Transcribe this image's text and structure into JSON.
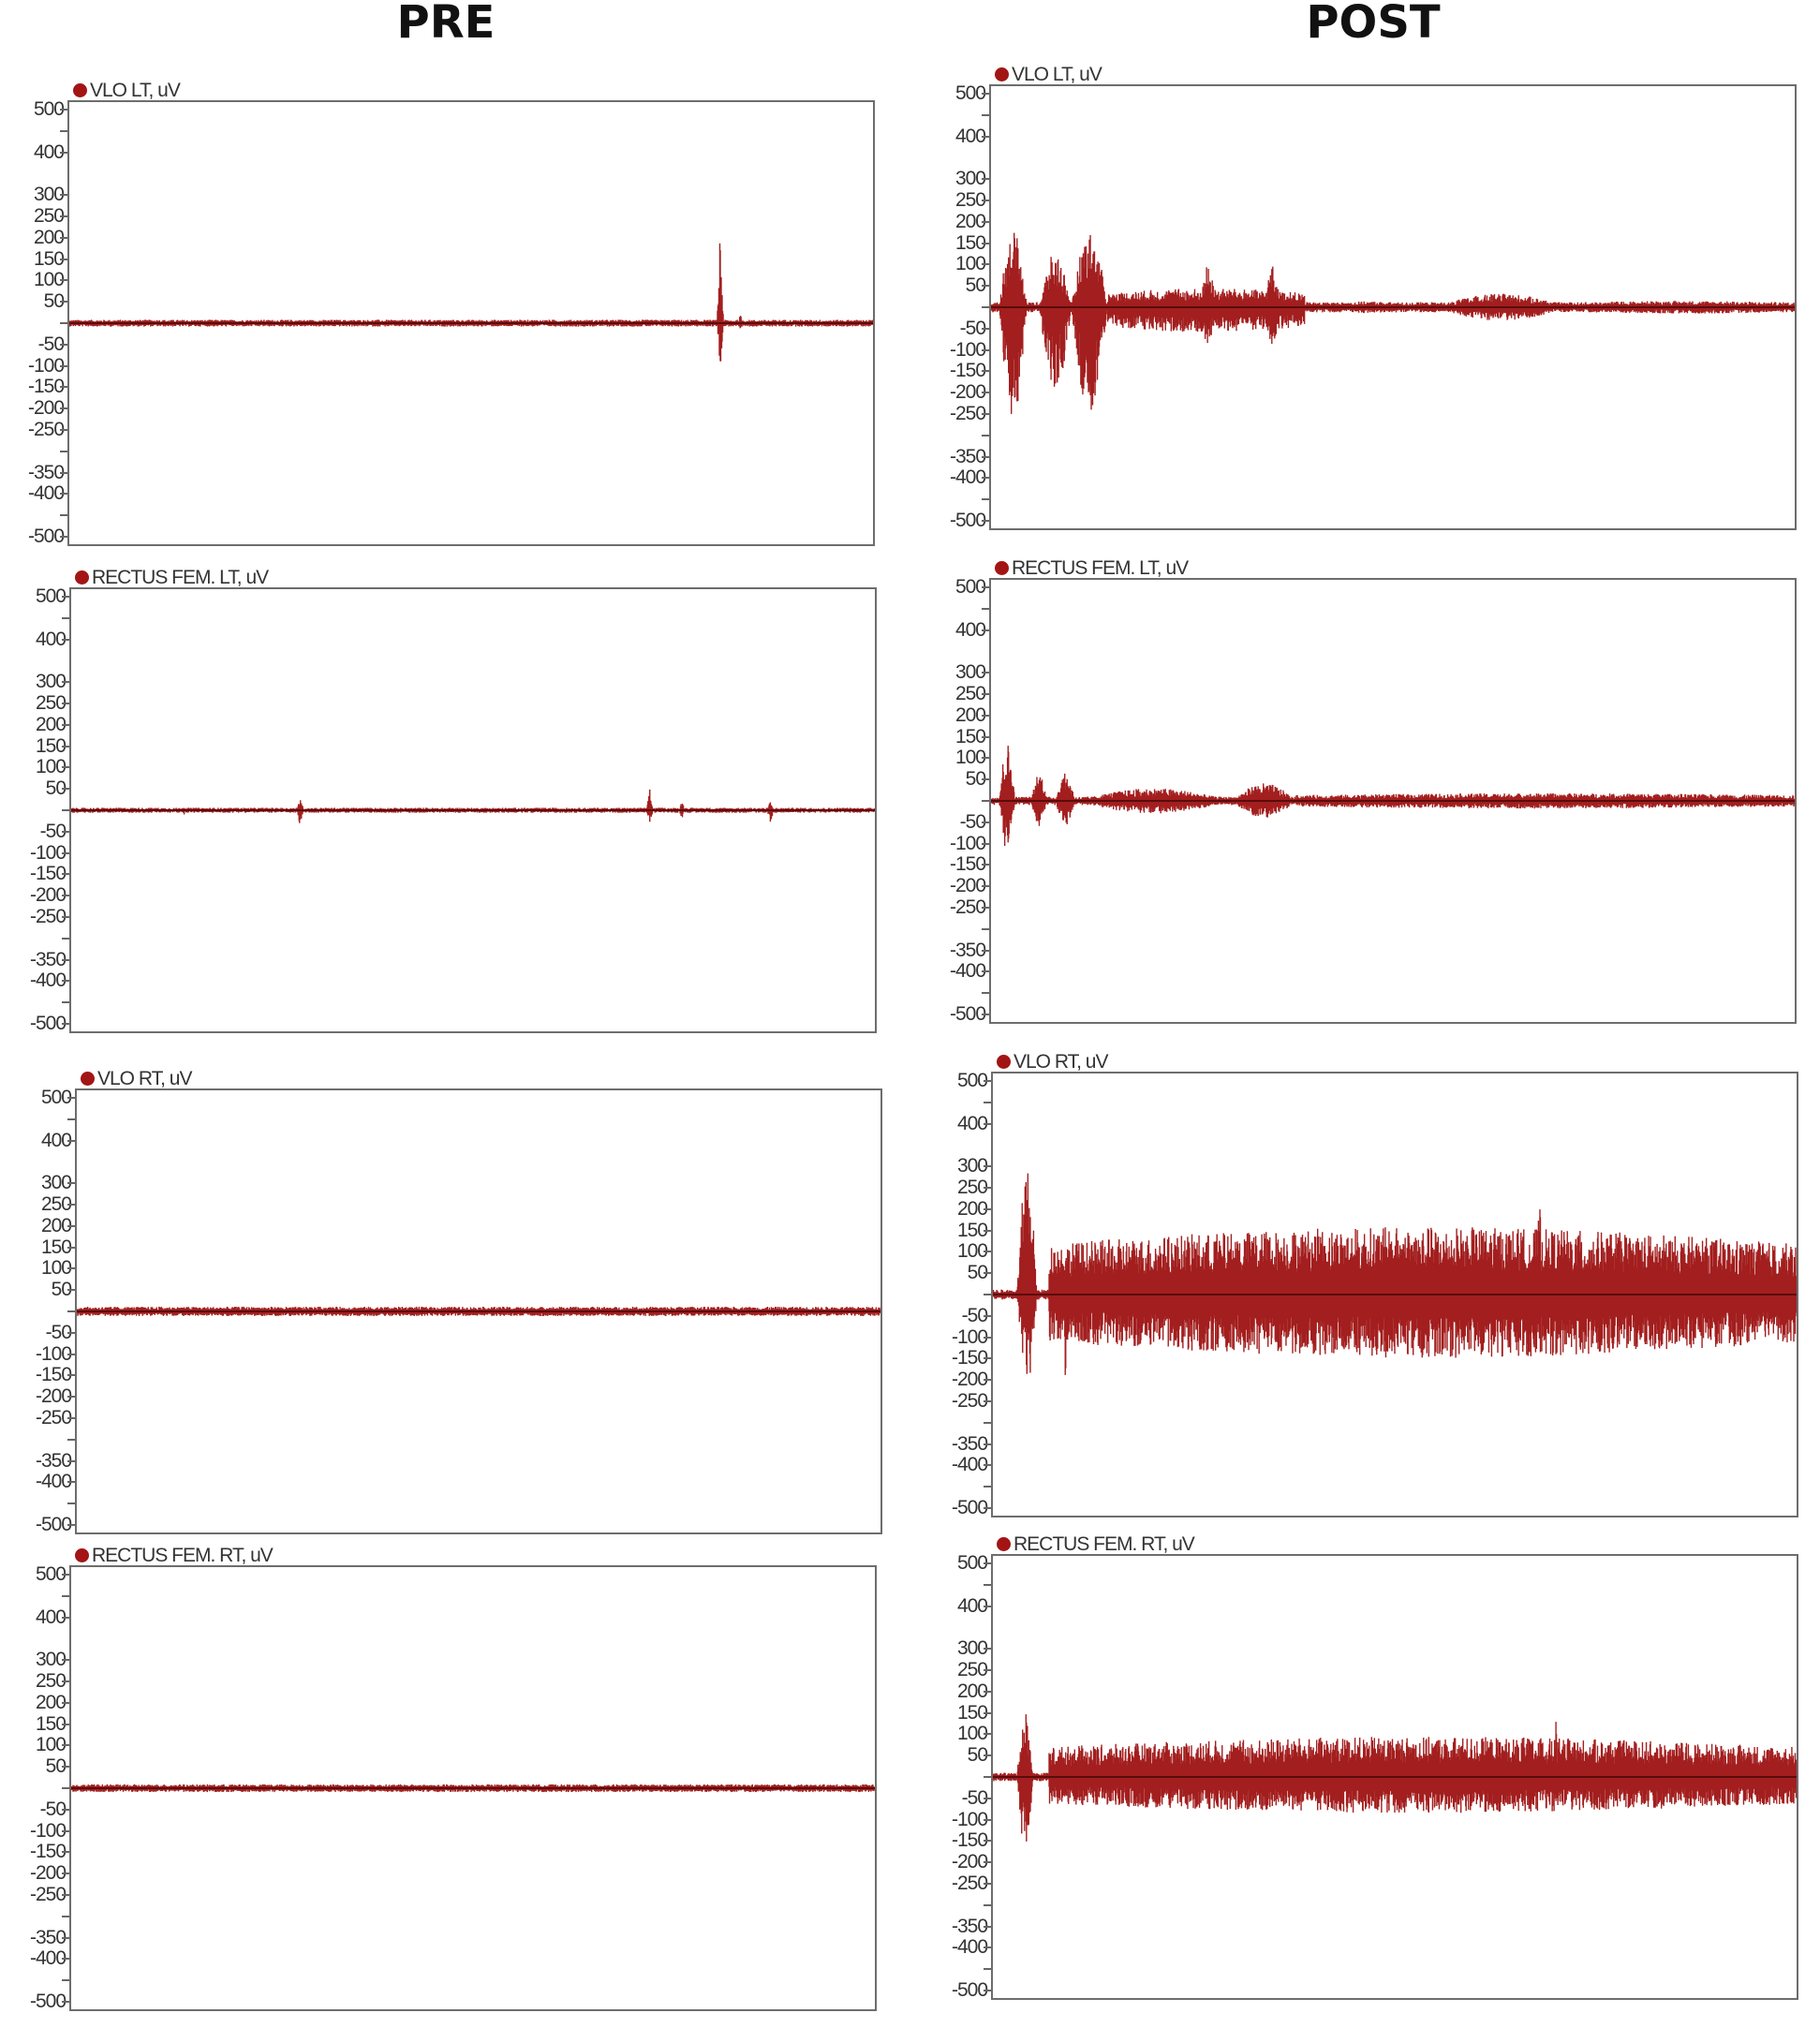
{
  "titles": {
    "pre": "PRE",
    "post": "POST"
  },
  "colors": {
    "signal": "#a31e1e",
    "baseline": "#5a0c0c",
    "marker": "#a31515"
  },
  "chart_data": [
    {
      "type": "line",
      "group": "PRE",
      "title": "VLO LT, uV",
      "ylabel": "uV",
      "ylim": [
        -500,
        500
      ],
      "x_units": "normalized time 0-1",
      "noise": 8,
      "bursts": [],
      "spikes": [
        {
          "t": 0.81,
          "up": 260,
          "down": -110
        },
        {
          "t": 0.835,
          "up": 20,
          "down": -25
        }
      ]
    },
    {
      "type": "line",
      "group": "PRE",
      "title": "RECTUS FEM. LT, uV",
      "ylabel": "uV",
      "ylim": [
        -500,
        500
      ],
      "x_units": "normalized time 0-1",
      "noise": 6,
      "bursts": [],
      "spikes": [
        {
          "t": 0.285,
          "up": 40,
          "down": -45
        },
        {
          "t": 0.72,
          "up": 55,
          "down": -35
        },
        {
          "t": 0.76,
          "up": 25,
          "down": -20
        },
        {
          "t": 0.87,
          "up": 25,
          "down": -35
        },
        {
          "t": 0.14,
          "up": 12,
          "down": -12
        }
      ]
    },
    {
      "type": "line",
      "group": "PRE",
      "title": "VLO RT, uV",
      "ylabel": "uV",
      "ylim": [
        -500,
        500
      ],
      "x_units": "normalized time 0-1",
      "noise": 11,
      "bursts": [],
      "spikes": []
    },
    {
      "type": "line",
      "group": "PRE",
      "title": "RECTUS FEM. RT, uV",
      "ylabel": "uV",
      "ylim": [
        -500,
        500
      ],
      "x_units": "normalized time 0-1",
      "noise": 9,
      "bursts": [],
      "spikes": []
    },
    {
      "type": "line",
      "group": "POST",
      "title": "VLO LT, uV",
      "ylabel": "uV",
      "ylim": [
        -500,
        500
      ],
      "x_units": "normalized time 0-1",
      "noise": 12,
      "bursts": [
        {
          "t0": 0.01,
          "t1": 0.045,
          "up": 180,
          "down": -260
        },
        {
          "t0": 0.06,
          "t1": 0.1,
          "up": 130,
          "down": -200
        },
        {
          "t0": 0.1,
          "t1": 0.145,
          "up": 180,
          "down": -250
        },
        {
          "t0": 0.145,
          "t1": 0.39,
          "up": 45,
          "down": -60
        },
        {
          "t0": 0.26,
          "t1": 0.28,
          "up": 100,
          "down": -100
        },
        {
          "t0": 0.34,
          "t1": 0.36,
          "up": 100,
          "down": -90
        },
        {
          "t0": 0.39,
          "t1": 0.55,
          "up": 14,
          "down": -14
        },
        {
          "t0": 0.55,
          "t1": 0.72,
          "up": 32,
          "down": -32
        },
        {
          "t0": 0.72,
          "t1": 1.0,
          "up": 15,
          "down": -15
        }
      ],
      "spikes": []
    },
    {
      "type": "line",
      "group": "POST",
      "title": "RECTUS FEM. LT, uV",
      "ylabel": "uV",
      "ylim": [
        -500,
        500
      ],
      "x_units": "normalized time 0-1",
      "noise": 10,
      "bursts": [
        {
          "t0": 0.01,
          "t1": 0.03,
          "up": 140,
          "down": -120
        },
        {
          "t0": 0.05,
          "t1": 0.07,
          "up": 70,
          "down": -60
        },
        {
          "t0": 0.08,
          "t1": 0.105,
          "up": 65,
          "down": -60
        },
        {
          "t0": 0.105,
          "t1": 0.3,
          "up": 30,
          "down": -30
        },
        {
          "t0": 0.3,
          "t1": 0.38,
          "up": 42,
          "down": -40
        },
        {
          "t0": 0.38,
          "t1": 1.0,
          "up": 18,
          "down": -18
        }
      ],
      "spikes": []
    },
    {
      "type": "line",
      "group": "POST",
      "title": "VLO RT, uV",
      "ylabel": "uV",
      "ylim": [
        -500,
        500
      ],
      "x_units": "normalized time 0-1",
      "noise": 12,
      "bursts": [
        {
          "t0": 0.03,
          "t1": 0.055,
          "up": 300,
          "down": -220
        },
        {
          "t0": 0.07,
          "t1": 1.0,
          "up": 160,
          "down": -150
        }
      ],
      "spikes": [
        {
          "t": 0.09,
          "up": 150,
          "down": -230
        },
        {
          "t": 0.68,
          "up": 270,
          "down": -160
        }
      ]
    },
    {
      "type": "line",
      "group": "POST",
      "title": "RECTUS FEM. RT, uV",
      "ylabel": "uV",
      "ylim": [
        -500,
        500
      ],
      "x_units": "normalized time 0-1",
      "noise": 10,
      "bursts": [
        {
          "t0": 0.03,
          "t1": 0.05,
          "up": 160,
          "down": -170
        },
        {
          "t0": 0.07,
          "t1": 1.0,
          "up": 95,
          "down": -85
        }
      ],
      "spikes": [
        {
          "t": 0.7,
          "up": 155,
          "down": -70
        }
      ]
    }
  ],
  "yticks": [
    500,
    400,
    300,
    250,
    200,
    150,
    100,
    50,
    -50,
    -100,
    -150,
    -200,
    -250,
    -350,
    -400,
    -500
  ],
  "minor_ticks": [
    450,
    0,
    -300,
    -450
  ]
}
